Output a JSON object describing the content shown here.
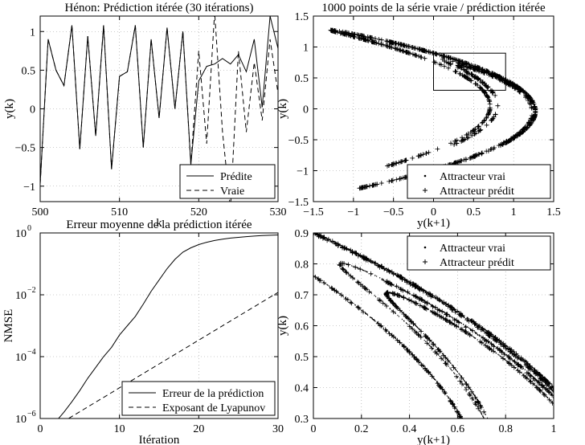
{
  "chart_data": [
    {
      "id": "p1",
      "type": "line",
      "title": "Hénon: Prédiction itérée (30 itérations)",
      "xlabel": "k",
      "ylabel": "y(k)",
      "xlim": [
        500,
        530
      ],
      "ylim": [
        -1.2,
        1.2
      ],
      "xticks": [
        500,
        510,
        520,
        530
      ],
      "xtick_labels": [
        "500",
        "510",
        "520",
        "530"
      ],
      "yticks": [
        -1,
        -0.5,
        0,
        0.5,
        1
      ],
      "ytick_labels": [
        "−1",
        "−0.5",
        "0",
        "0.5",
        "1"
      ],
      "grid": true,
      "legend_position": "bottom-right",
      "series": [
        {
          "name": "Prédite",
          "style": "solid",
          "x": [
            500,
            501,
            502,
            503,
            504,
            505,
            506,
            507,
            508,
            509,
            510,
            511,
            512,
            513,
            514,
            515,
            516,
            517,
            518,
            519,
            520,
            521,
            522,
            523,
            524,
            525,
            526,
            527,
            528,
            529,
            530
          ],
          "y": [
            -0.97,
            0.9,
            0.5,
            0.3,
            1.08,
            -0.52,
            0.94,
            -0.35,
            1.08,
            -0.78,
            0.42,
            0.48,
            1.08,
            -0.5,
            0.9,
            -0.12,
            1.05,
            0.0,
            1.0,
            -0.72,
            0.36,
            0.55,
            0.58,
            0.65,
            0.58,
            0.7,
            0.48,
            0.9,
            0.02,
            1.2,
            0.78
          ]
        },
        {
          "name": "Vraie",
          "style": "dashed",
          "x": [
            500,
            501,
            502,
            503,
            504,
            505,
            506,
            507,
            508,
            509,
            510,
            511,
            512,
            513,
            514,
            515,
            516,
            517,
            518,
            519,
            520,
            521,
            522,
            523,
            524,
            525,
            526,
            527,
            528,
            529,
            530
          ],
          "y": [
            -0.97,
            0.9,
            0.5,
            0.3,
            1.08,
            -0.52,
            0.94,
            -0.35,
            1.08,
            -0.78,
            0.42,
            0.48,
            1.08,
            -0.5,
            0.9,
            -0.12,
            1.05,
            0.0,
            1.0,
            -0.72,
            0.75,
            -0.45,
            1.25,
            -0.3,
            -1.3,
            0.75,
            -0.3,
            0.6,
            -0.15,
            0.9,
            0.2
          ]
        }
      ]
    },
    {
      "id": "p2",
      "type": "scatter",
      "title": "1000 points de la  série vraie / prédiction itérée",
      "xlabel": "y(k+1)",
      "ylabel": "y(k)",
      "xlim": [
        -1.5,
        1.5
      ],
      "ylim": [
        -1.5,
        1.5
      ],
      "xticks": [
        -1.5,
        -1,
        -0.5,
        0,
        0.5,
        1,
        1.5
      ],
      "xtick_labels": [
        "−1.5",
        "−1",
        "−0.5",
        "0",
        "0.5",
        "1",
        "1.5"
      ],
      "yticks": [
        -1.5,
        -1,
        -0.5,
        0,
        0.5,
        1,
        1.5
      ],
      "ytick_labels": [
        "−1.5",
        "−1",
        "−0.5",
        "0",
        "0.5",
        "1",
        "1.5"
      ],
      "grid": true,
      "legend_position": "bottom-right",
      "zoom_box": {
        "x": [
          0,
          0.9
        ],
        "y": [
          0.3,
          0.9
        ]
      },
      "series": [
        {
          "name": "Attracteur vrai",
          "marker": "dot",
          "generator": "henon",
          "a": 1.4,
          "b": 0.3,
          "n": 1000
        },
        {
          "name": "Attracteur prédit",
          "marker": "plus",
          "generator": "henon",
          "a": 1.4,
          "b": 0.3,
          "n": 1000
        }
      ]
    },
    {
      "id": "p3",
      "type": "line",
      "title": "Erreur moyenne de la prédiction itérée",
      "xlabel": "Itération",
      "ylabel": "NMSE",
      "xlim": [
        0,
        30
      ],
      "ylim": [
        1e-06,
        1
      ],
      "yscale": "log",
      "xticks": [
        0,
        10,
        20,
        30
      ],
      "xtick_labels": [
        "0",
        "10",
        "20",
        "30"
      ],
      "yticks": [
        -6,
        -4,
        -2,
        0
      ],
      "ytick_labels": [
        "10",
        "10",
        "10",
        "10"
      ],
      "ytick_exponents": [
        "−6",
        "−4",
        "−2",
        "0"
      ],
      "grid": true,
      "legend_position": "bottom-right",
      "series": [
        {
          "name": "Erreur de la prédiction",
          "style": "solid",
          "x": [
            1,
            2,
            3,
            4,
            5,
            6,
            7,
            8,
            9,
            10,
            11,
            12,
            13,
            14,
            15,
            16,
            17,
            18,
            19,
            20,
            21,
            22,
            23,
            24,
            25,
            26,
            27,
            28,
            29,
            30
          ],
          "y": [
            4e-07,
            8e-07,
            1.6e-06,
            3.5e-06,
            8e-06,
            2e-05,
            4.5e-05,
            0.0001,
            0.0002,
            0.0005,
            0.001,
            0.002,
            0.005,
            0.013,
            0.03,
            0.07,
            0.14,
            0.24,
            0.33,
            0.42,
            0.5,
            0.57,
            0.63,
            0.68,
            0.72,
            0.76,
            0.79,
            0.82,
            0.84,
            0.86
          ]
        },
        {
          "name": "Exposant de Lyapunov",
          "style": "dashed",
          "x": [
            1,
            30
          ],
          "y": [
            4e-07,
            0.012
          ]
        }
      ]
    },
    {
      "id": "p4",
      "type": "scatter",
      "title": "",
      "xlabel": "y(k+1)",
      "ylabel": "y(k)",
      "xlim": [
        0,
        1
      ],
      "ylim": [
        0.3,
        0.9
      ],
      "xticks": [
        0,
        0.2,
        0.4,
        0.6,
        0.8,
        1
      ],
      "xtick_labels": [
        "0",
        "0.2",
        "0.4",
        "0.6",
        "0.8",
        "1"
      ],
      "yticks": [
        0.3,
        0.4,
        0.5,
        0.6,
        0.7,
        0.8,
        0.9
      ],
      "ytick_labels": [
        "0.3",
        "0.4",
        "0.5",
        "0.6",
        "0.7",
        "0.8",
        "0.9"
      ],
      "grid": true,
      "legend_position": "top-right",
      "series": [
        {
          "name": "Attracteur vrai",
          "marker": "dot",
          "generator": "henon",
          "a": 1.4,
          "b": 0.3,
          "n": 12000
        },
        {
          "name": "Attracteur prédit",
          "marker": "plus",
          "generator": "henon",
          "a": 1.4,
          "b": 0.3,
          "n": 2000
        }
      ]
    }
  ]
}
